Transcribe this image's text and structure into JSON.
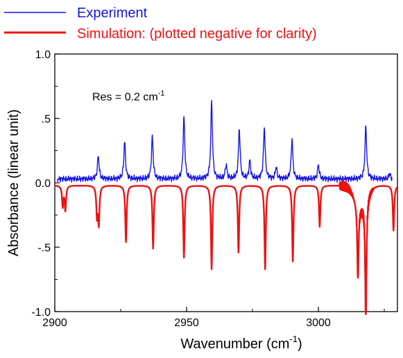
{
  "chart_data": {
    "type": "line",
    "xlabel": "Wavenumber (cm",
    "xlabel_sup": "-1",
    "xlabel_close": ")",
    "ylabel": "Absorbance (linear unit)",
    "xlim": [
      2900,
      3030
    ],
    "ylim": [
      -1.0,
      1.0
    ],
    "x_ticks": [
      2900,
      2950,
      3000
    ],
    "x_tick_labels": [
      "2900",
      "2950",
      "3000"
    ],
    "y_ticks": [
      -1.0,
      -0.5,
      0.0,
      0.5,
      1.0
    ],
    "y_tick_labels": [
      "-1.0",
      "-.5",
      "0.0",
      ".5",
      "1.0"
    ],
    "annotation": {
      "text": "Res = 0.2 cm",
      "sup": "-1"
    },
    "legend": {
      "placement": "top-left",
      "entries": [
        {
          "label": "Experiment",
          "color": "#1414e6"
        },
        {
          "label": "Simulation: (plotted negative for clarity)",
          "color": "#ee1111"
        }
      ]
    },
    "series": [
      {
        "name": "Experiment",
        "color": "#1414e6",
        "x_range": [
          2901,
          3028
        ],
        "baseline": 0.03,
        "peaks": [
          {
            "x": 2916.5,
            "y": 0.21
          },
          {
            "x": 2926.5,
            "y": 0.32
          },
          {
            "x": 2937,
            "y": 0.36
          },
          {
            "x": 2949,
            "y": 0.51
          },
          {
            "x": 2959.5,
            "y": 0.63
          },
          {
            "x": 2965,
            "y": 0.14
          },
          {
            "x": 2970,
            "y": 0.42
          },
          {
            "x": 2974,
            "y": 0.17
          },
          {
            "x": 2979.5,
            "y": 0.43
          },
          {
            "x": 2984,
            "y": 0.12
          },
          {
            "x": 2990,
            "y": 0.34
          },
          {
            "x": 3000,
            "y": 0.14
          },
          {
            "x": 3018,
            "y": 0.44
          },
          {
            "x": 3027,
            "y": 0.07
          }
        ]
      },
      {
        "name": "Simulation: (plotted negative for clarity)",
        "color": "#ee1111",
        "x_range": [
          2900,
          3030
        ],
        "baseline": -0.02,
        "peaks": [
          {
            "x": 2903,
            "y": -0.18
          },
          {
            "x": 2904,
            "y": -0.21
          },
          {
            "x": 2916,
            "y": -0.25
          },
          {
            "x": 2916.7,
            "y": -0.31
          },
          {
            "x": 2927,
            "y": -0.46
          },
          {
            "x": 2937.3,
            "y": -0.51
          },
          {
            "x": 2949,
            "y": -0.58
          },
          {
            "x": 2959.5,
            "y": -0.67
          },
          {
            "x": 2969.7,
            "y": -0.54
          },
          {
            "x": 2979.8,
            "y": -0.67
          },
          {
            "x": 2990.3,
            "y": -0.61
          },
          {
            "x": 3000.5,
            "y": -0.34
          },
          {
            "x": 3015,
            "y": -0.6
          },
          {
            "x": 3018,
            "y": -0.94
          },
          {
            "x": 3028.5,
            "y": -0.37
          }
        ]
      }
    ]
  }
}
